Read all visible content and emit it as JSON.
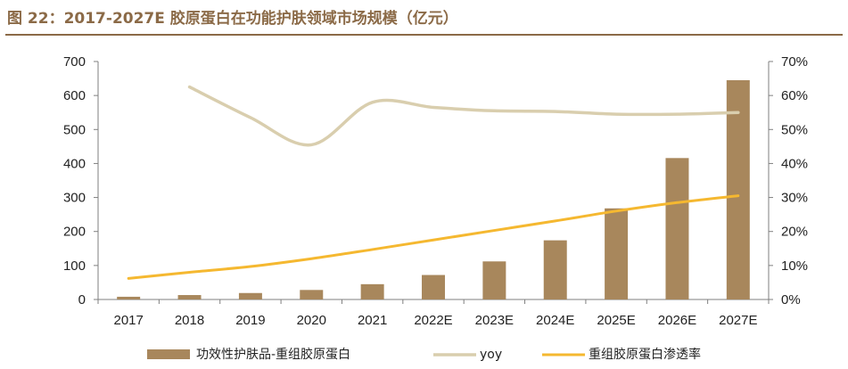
{
  "header": {
    "title": "图 22：2017-2027E 胶原蛋白在功能护肤领域市场规模（亿元）"
  },
  "colors": {
    "title": "#8b6a47",
    "bars": "#a8875c",
    "yoy": "#d9ceae",
    "penetration": "#f5b830",
    "axis": "#7f7f7f"
  },
  "chart_data": {
    "type": "bar",
    "title": "",
    "categories": [
      "2017",
      "2018",
      "2019",
      "2020",
      "2021",
      "2022E",
      "2023E",
      "2024E",
      "2025E",
      "2026E",
      "2027E"
    ],
    "y_left": {
      "ylim": [
        0,
        700
      ],
      "ticks": [
        "0",
        "100",
        "200",
        "300",
        "400",
        "500",
        "600",
        "700"
      ]
    },
    "y_right": {
      "ylim": [
        0,
        0.7
      ],
      "ticks": [
        "0%",
        "10%",
        "20%",
        "30%",
        "40%",
        "50%",
        "60%",
        "70%"
      ]
    },
    "series": [
      {
        "name": "功效性护肤品-重组胶原蛋白",
        "type": "bar",
        "axis": "left",
        "values": [
          8,
          13,
          19,
          28,
          45,
          72,
          112,
          174,
          268,
          416,
          645
        ]
      },
      {
        "name": "yoy",
        "type": "line",
        "axis": "right",
        "smooth": true,
        "values": [
          null,
          0.625,
          0.535,
          0.455,
          0.58,
          0.565,
          0.555,
          0.553,
          0.545,
          0.545,
          0.55
        ]
      },
      {
        "name": "重组胶原蛋白渗透率",
        "type": "line",
        "axis": "right",
        "values": [
          0.062,
          0.08,
          0.097,
          0.12,
          0.147,
          0.175,
          0.203,
          0.231,
          0.26,
          0.285,
          0.305
        ]
      }
    ],
    "grid": false,
    "legend": "bottom"
  }
}
